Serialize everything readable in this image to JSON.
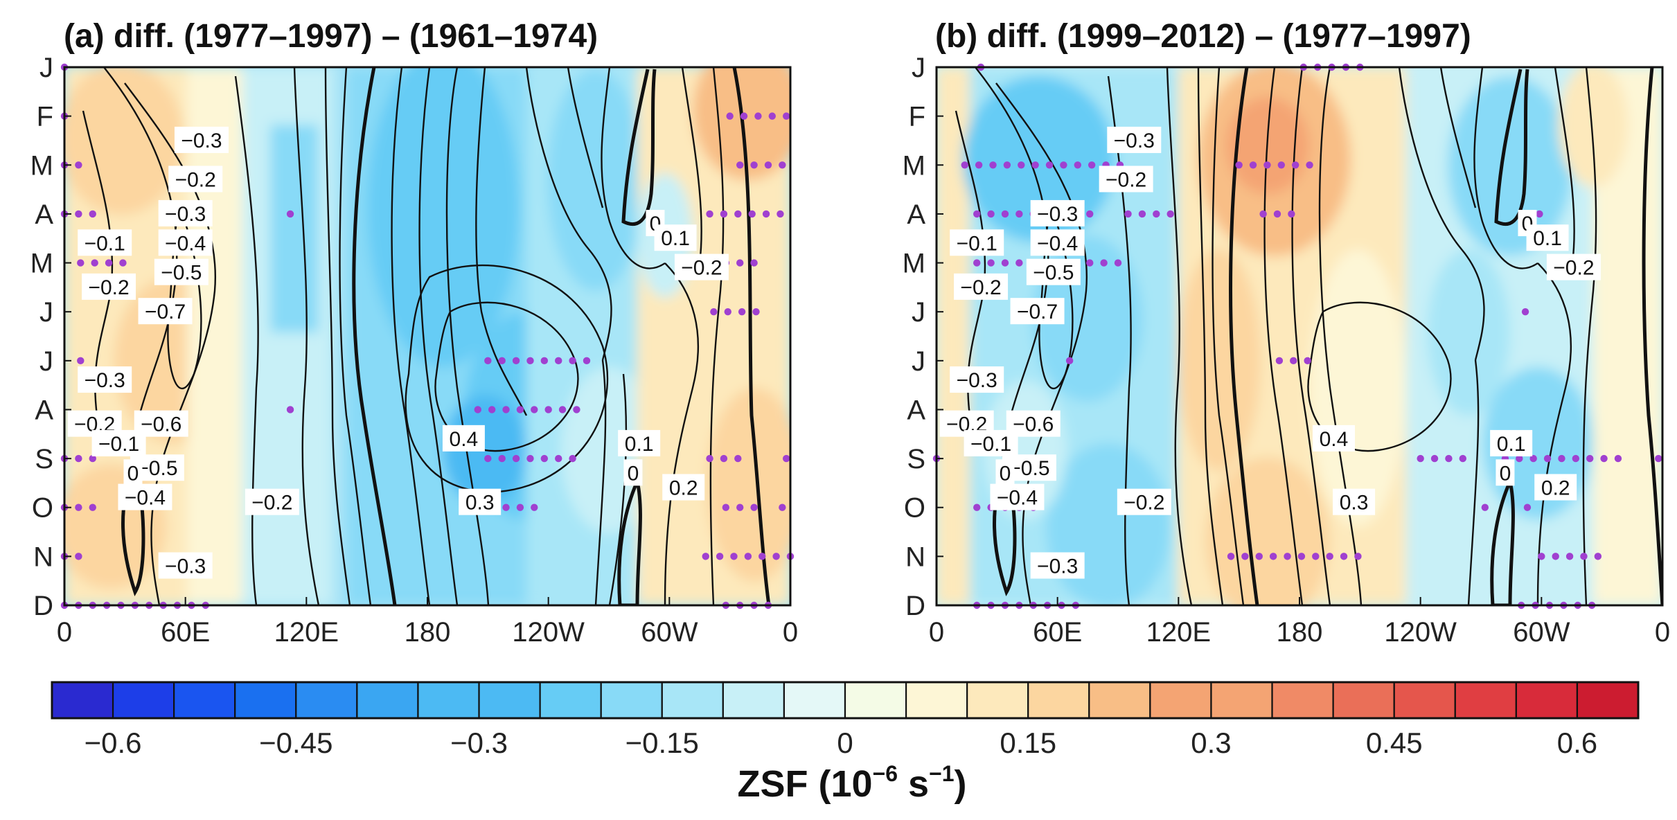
{
  "chart_data": {
    "type": "heatmap",
    "description_variable": "ZSF",
    "y_categories": [
      "J",
      "F",
      "M",
      "A",
      "M",
      "J",
      "J",
      "A",
      "S",
      "O",
      "N",
      "D"
    ],
    "x_ticks": [
      "0",
      "60E",
      "120E",
      "180",
      "120W",
      "60W",
      "0"
    ],
    "x_range_deg": [
      0,
      360
    ],
    "panels": [
      {
        "title": "(a) diff. (1977–1997) – (1961–1974)",
        "contour_labels": [
          {
            "text": "−0.3",
            "lon": 68,
            "month": 1.5
          },
          {
            "text": "−0.2",
            "lon": 65,
            "month": 2.3
          },
          {
            "text": "−0.3",
            "lon": 60,
            "month": 3.0
          },
          {
            "text": "−0.1",
            "lon": 20,
            "month": 3.6
          },
          {
            "text": "−0.4",
            "lon": 60,
            "month": 3.6
          },
          {
            "text": "−0.5",
            "lon": 58,
            "month": 4.2
          },
          {
            "text": "−0.2",
            "lon": 22,
            "month": 4.5
          },
          {
            "text": "−0.7",
            "lon": 50,
            "month": 5.0
          },
          {
            "text": "−0.3",
            "lon": 20,
            "month": 6.4
          },
          {
            "text": "−0.2",
            "lon": 15,
            "month": 7.3
          },
          {
            "text": "−0.6",
            "lon": 48,
            "month": 7.3
          },
          {
            "text": "−0.1",
            "lon": 27,
            "month": 7.7
          },
          {
            "text": "−0.5",
            "lon": 46,
            "month": 8.2
          },
          {
            "text": "−0.4",
            "lon": 40,
            "month": 8.8
          },
          {
            "text": "−0.2",
            "lon": 103,
            "month": 8.9
          },
          {
            "text": "−0.3",
            "lon": 60,
            "month": 10.2
          },
          {
            "text": "0",
            "lon": 34,
            "month": 8.3
          },
          {
            "text": "0.4",
            "lon": 198,
            "month": 7.6
          },
          {
            "text": "0.3",
            "lon": 206,
            "month": 8.9
          },
          {
            "text": "0.1",
            "lon": 285,
            "month": 7.7
          },
          {
            "text": "0",
            "lon": 282,
            "month": 8.3
          },
          {
            "text": "0.2",
            "lon": 307,
            "month": 8.6
          },
          {
            "text": "0",
            "lon": 293,
            "month": 3.2
          },
          {
            "text": "0.1",
            "lon": 303,
            "month": 3.5
          },
          {
            "text": "−0.2",
            "lon": 316,
            "month": 4.1
          }
        ]
      },
      {
        "title": "(b) diff. (1999–2012) – (1977–1997)",
        "contour_labels": [
          {
            "text": "−0.3",
            "lon": 98,
            "month": 1.5
          },
          {
            "text": "−0.2",
            "lon": 94,
            "month": 2.3
          },
          {
            "text": "−0.3",
            "lon": 60,
            "month": 3.0
          },
          {
            "text": "−0.1",
            "lon": 20,
            "month": 3.6
          },
          {
            "text": "−0.4",
            "lon": 60,
            "month": 3.6
          },
          {
            "text": "−0.5",
            "lon": 58,
            "month": 4.2
          },
          {
            "text": "−0.2",
            "lon": 22,
            "month": 4.5
          },
          {
            "text": "−0.7",
            "lon": 50,
            "month": 5.0
          },
          {
            "text": "−0.3",
            "lon": 20,
            "month": 6.4
          },
          {
            "text": "−0.2",
            "lon": 15,
            "month": 7.3
          },
          {
            "text": "−0.6",
            "lon": 48,
            "month": 7.3
          },
          {
            "text": "−0.1",
            "lon": 27,
            "month": 7.7
          },
          {
            "text": "−0.5",
            "lon": 46,
            "month": 8.2
          },
          {
            "text": "−0.4",
            "lon": 40,
            "month": 8.8
          },
          {
            "text": "−0.2",
            "lon": 103,
            "month": 8.9
          },
          {
            "text": "−0.3",
            "lon": 60,
            "month": 10.2
          },
          {
            "text": "0",
            "lon": 34,
            "month": 8.3
          },
          {
            "text": "0.4",
            "lon": 197,
            "month": 7.6
          },
          {
            "text": "0.3",
            "lon": 207,
            "month": 8.9
          },
          {
            "text": "0.1",
            "lon": 285,
            "month": 7.7
          },
          {
            "text": "0",
            "lon": 282,
            "month": 8.3
          },
          {
            "text": "0.2",
            "lon": 307,
            "month": 8.6
          },
          {
            "text": "0",
            "lon": 293,
            "month": 3.2
          },
          {
            "text": "0.1",
            "lon": 303,
            "month": 3.5
          },
          {
            "text": "−0.2",
            "lon": 316,
            "month": 4.1
          }
        ]
      }
    ],
    "colorbar": {
      "bins": [
        -0.65,
        -0.6,
        -0.55,
        -0.5,
        -0.45,
        -0.4,
        -0.35,
        -0.3,
        -0.25,
        -0.2,
        -0.15,
        -0.1,
        -0.05,
        0,
        0.05,
        0.1,
        0.15,
        0.2,
        0.25,
        0.3,
        0.35,
        0.4,
        0.45,
        0.5,
        0.55,
        0.6,
        0.65
      ],
      "tick_labels": [
        "−0.6",
        "−0.45",
        "−0.3",
        "−0.15",
        "0",
        "0.15",
        "0.3",
        "0.45",
        "0.6"
      ],
      "tick_values": [
        -0.6,
        -0.45,
        -0.3,
        -0.15,
        0,
        0.15,
        0.3,
        0.45,
        0.6
      ],
      "title_main": "ZSF (10",
      "title_exp1": "−6",
      "title_mid": " s",
      "title_exp2": "−1",
      "title_end": ")"
    }
  },
  "colors": {
    "stipple": "#a040d0",
    "contour": "#111111",
    "palette": [
      "#2a2ad0",
      "#1d3ee8",
      "#1a55f0",
      "#1a70f0",
      "#2a8cf2",
      "#3aa6f2",
      "#4cbaf3",
      "#66ccf5",
      "#88daf7",
      "#a8e6f7",
      "#c8f0f7",
      "#e4f8f7",
      "#f4fbe6",
      "#fdf6d6",
      "#fde9bc",
      "#fcd6a0",
      "#f8be86",
      "#f4a473",
      "#f08a66",
      "#ea6f58",
      "#e5564c",
      "#e03e42",
      "#d82b3a",
      "#cc1c30"
    ]
  }
}
